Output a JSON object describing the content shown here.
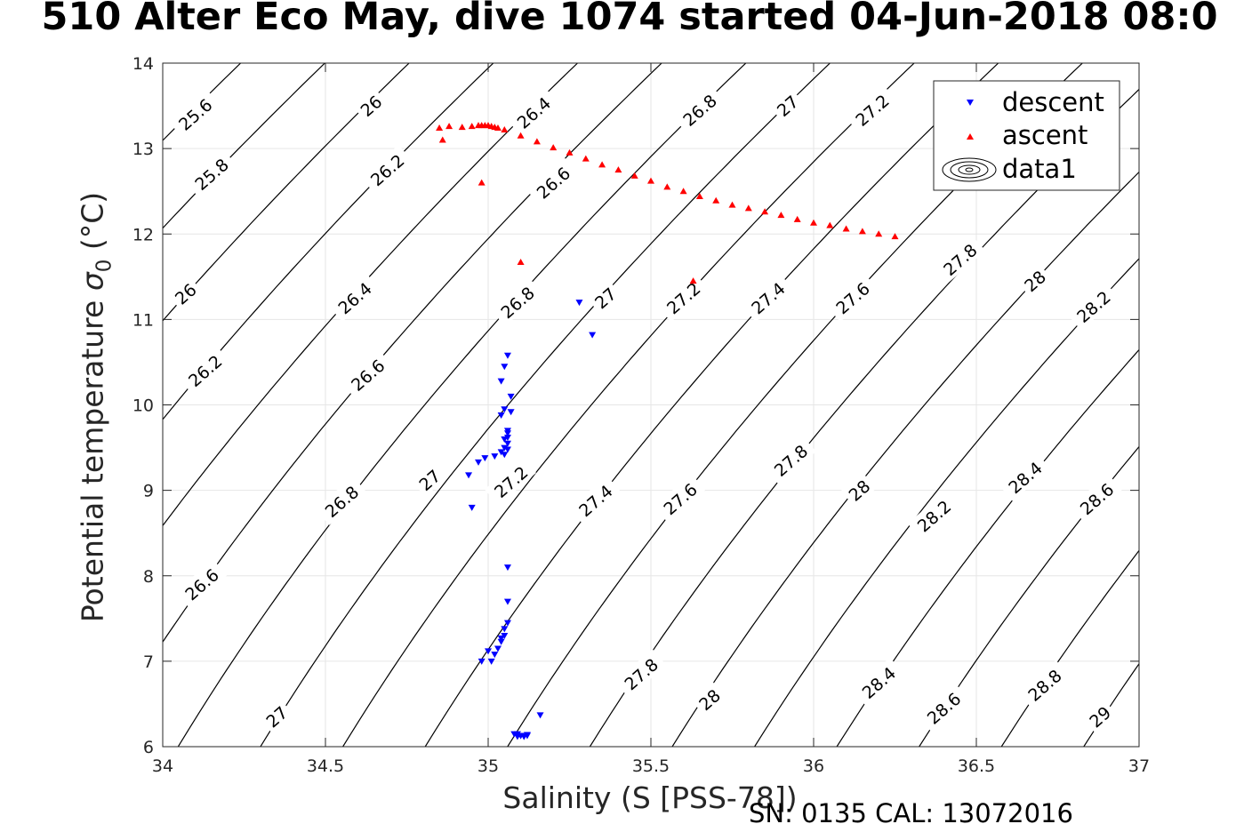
{
  "figure": {
    "title": "510 Alter Eco May, dive 1074 started 04-Jun-2018 08:0",
    "xlabel": "Salinity (S [PSS-78])",
    "ylabel_main": "Potential temperature ",
    "ylabel_sigma": "σ",
    "ylabel_sub": "0",
    "ylabel_unit": " (°C)",
    "footer": "SN: 0135  CAL: 13072016"
  },
  "chart_data": {
    "type": "scatter",
    "xlim": [
      34,
      37
    ],
    "ylim": [
      6,
      14
    ],
    "xticks": [
      "34",
      "34.5",
      "35",
      "35.5",
      "36",
      "36.5",
      "37"
    ],
    "xtick_values": [
      34,
      34.5,
      35,
      35.5,
      36,
      36.5,
      37
    ],
    "yticks": [
      "6",
      "7",
      "8",
      "9",
      "10",
      "11",
      "12",
      "13",
      "14"
    ],
    "ytick_values": [
      6,
      7,
      8,
      9,
      10,
      11,
      12,
      13,
      14
    ],
    "grid": true,
    "legend_position": "top-right",
    "legend": [
      "descent",
      "ascent",
      "data1"
    ],
    "colors": {
      "descent": "#0000ff",
      "ascent": "#ff0000",
      "contour": "#000000",
      "grid": "#e6e6e6"
    },
    "contour_levels": [
      25.6,
      25.8,
      26,
      26.2,
      26.4,
      26.6,
      26.8,
      27,
      27.2,
      27.4,
      27.6,
      27.8,
      28,
      28.2,
      28.4,
      28.6,
      28.8,
      29
    ],
    "contour_labels": [
      {
        "text": "25.6",
        "s": 34.1,
        "t": 13.4
      },
      {
        "text": "25.8",
        "s": 34.15,
        "t": 12.7
      },
      {
        "text": "26",
        "s": 34.07,
        "t": 11.3
      },
      {
        "text": "26.2",
        "s": 34.13,
        "t": 10.4
      },
      {
        "text": "26.6",
        "s": 34.12,
        "t": 7.9
      },
      {
        "text": "27",
        "s": 34.35,
        "t": 6.35
      },
      {
        "text": "26",
        "s": 34.64,
        "t": 13.5
      },
      {
        "text": "26.2",
        "s": 34.69,
        "t": 12.75
      },
      {
        "text": "26.4",
        "s": 34.59,
        "t": 11.25
      },
      {
        "text": "26.6",
        "s": 34.63,
        "t": 10.35
      },
      {
        "text": "26.8",
        "s": 34.55,
        "t": 8.87
      },
      {
        "text": "27",
        "s": 34.82,
        "t": 9.12
      },
      {
        "text": "26.4",
        "s": 35.14,
        "t": 13.42
      },
      {
        "text": "26.6",
        "s": 35.2,
        "t": 12.6
      },
      {
        "text": "26.8",
        "s": 35.09,
        "t": 11.2
      },
      {
        "text": "27.2",
        "s": 35.07,
        "t": 9.1
      },
      {
        "text": "27",
        "s": 35.36,
        "t": 11.25
      },
      {
        "text": "27.4",
        "s": 35.33,
        "t": 8.88
      },
      {
        "text": "27.8",
        "s": 35.47,
        "t": 6.85
      },
      {
        "text": "26.8",
        "s": 35.65,
        "t": 13.45
      },
      {
        "text": "27.2",
        "s": 35.6,
        "t": 11.25
      },
      {
        "text": "27.6",
        "s": 35.59,
        "t": 8.9
      },
      {
        "text": "28",
        "s": 35.68,
        "t": 6.55
      },
      {
        "text": "27",
        "s": 35.92,
        "t": 13.5
      },
      {
        "text": "27.4",
        "s": 35.86,
        "t": 11.25
      },
      {
        "text": "27.8",
        "s": 35.93,
        "t": 9.35
      },
      {
        "text": "27.2",
        "s": 36.18,
        "t": 13.45
      },
      {
        "text": "27.6",
        "s": 36.12,
        "t": 11.25
      },
      {
        "text": "28",
        "s": 36.14,
        "t": 9.0
      },
      {
        "text": "28.4",
        "s": 36.2,
        "t": 6.75
      },
      {
        "text": "27.8",
        "s": 36.45,
        "t": 11.7
      },
      {
        "text": "28.2",
        "s": 36.37,
        "t": 8.7
      },
      {
        "text": "28.6",
        "s": 36.4,
        "t": 6.45
      },
      {
        "text": "28",
        "s": 36.68,
        "t": 11.45
      },
      {
        "text": "28.4",
        "s": 36.65,
        "t": 9.15
      },
      {
        "text": "28.8",
        "s": 36.71,
        "t": 6.72
      },
      {
        "text": "28.2",
        "s": 36.86,
        "t": 11.15
      },
      {
        "text": "28.6",
        "s": 36.87,
        "t": 8.9
      },
      {
        "text": "29",
        "s": 36.88,
        "t": 6.35
      }
    ],
    "series": [
      {
        "name": "descent",
        "marker": "triangle-down",
        "x": [
          35.06,
          35.05,
          35.07,
          35.04,
          35.05,
          35.04,
          35.07,
          35.06,
          35.06,
          35.05,
          35.06,
          35.05,
          35.06,
          35.06,
          35.05,
          35.04,
          35.02,
          34.99,
          34.97,
          34.94,
          34.95,
          35.28,
          35.32,
          35.06,
          35.06,
          35.06,
          35.05,
          35.05,
          35.04,
          35.04,
          35.03,
          35.02,
          35.01,
          35.0,
          34.98,
          35.16,
          35.08,
          35.09,
          35.1,
          35.11,
          35.12,
          35.1,
          35.09,
          35.11,
          35.12
        ],
        "y": [
          10.58,
          10.45,
          10.1,
          10.28,
          9.95,
          9.88,
          9.92,
          9.7,
          9.62,
          9.6,
          9.55,
          9.5,
          9.48,
          9.67,
          9.42,
          9.45,
          9.4,
          9.38,
          9.33,
          9.18,
          8.8,
          11.2,
          10.82,
          8.1,
          7.7,
          7.45,
          7.38,
          7.3,
          7.27,
          7.23,
          7.15,
          7.08,
          7.0,
          7.12,
          7.0,
          6.37,
          6.15,
          6.12,
          6.13,
          6.12,
          6.14,
          6.13,
          6.15,
          6.12,
          6.13
        ]
      },
      {
        "name": "ascent",
        "marker": "triangle-up",
        "x": [
          34.85,
          34.86,
          34.88,
          34.92,
          34.95,
          34.97,
          34.98,
          34.99,
          35.0,
          35.01,
          35.02,
          35.03,
          34.98,
          35.1,
          35.63,
          35.05,
          35.1,
          35.15,
          35.2,
          35.25,
          35.3,
          35.35,
          35.4,
          35.45,
          35.5,
          35.55,
          35.6,
          35.65,
          35.7,
          35.75,
          35.8,
          35.85,
          35.9,
          35.95,
          36.0,
          36.05,
          36.1,
          36.15,
          36.2,
          36.25
        ],
        "y": [
          13.24,
          13.1,
          13.26,
          13.25,
          13.26,
          13.27,
          13.27,
          13.27,
          13.27,
          13.26,
          13.25,
          13.24,
          12.6,
          11.67,
          11.45,
          13.22,
          13.15,
          13.08,
          13.01,
          12.95,
          12.88,
          12.81,
          12.75,
          12.68,
          12.62,
          12.55,
          12.5,
          12.44,
          12.39,
          12.34,
          12.3,
          12.26,
          12.22,
          12.17,
          12.13,
          12.1,
          12.06,
          12.03,
          12.0,
          11.97
        ]
      }
    ]
  }
}
